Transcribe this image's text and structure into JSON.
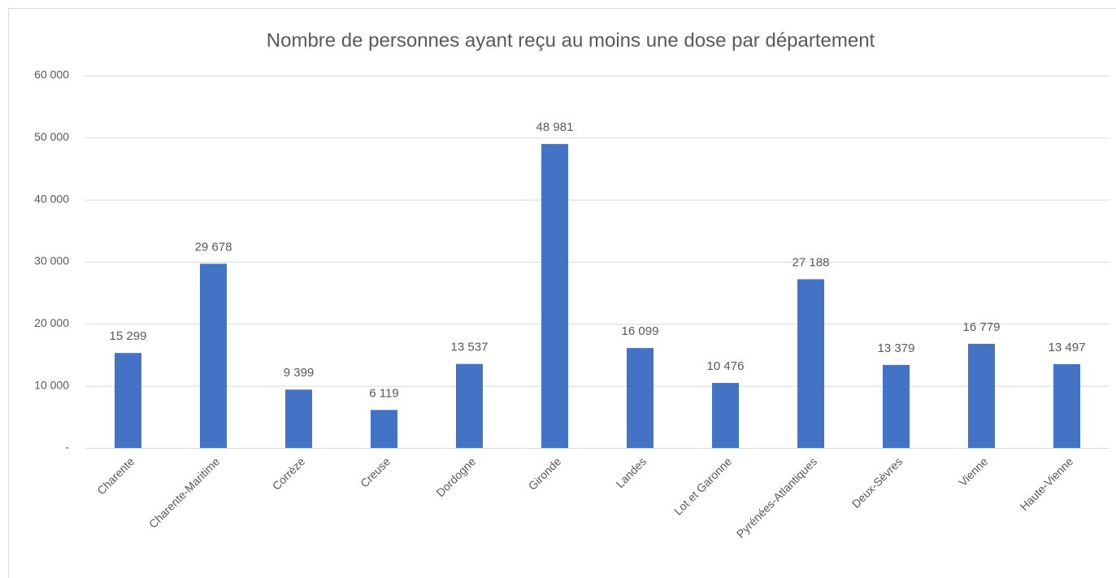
{
  "chart_data": {
    "type": "bar",
    "title": "Nombre de personnes ayant reçu au moins une dose par département",
    "categories": [
      "Charente",
      "Charente-Maritime",
      "Corrèze",
      "Creuse",
      "Dordogne",
      "Gironde",
      "Landes",
      "Lot et Garonne",
      "Pyrénées-Atlantiques",
      "Deux-Sèvres",
      "Vienne",
      "Haute-Vienne"
    ],
    "values": [
      15299,
      29678,
      9399,
      6119,
      13537,
      48981,
      16099,
      10476,
      27188,
      13379,
      16779,
      13497
    ],
    "value_labels": [
      "15 299",
      "29 678",
      "9 399",
      "6 119",
      "13 537",
      "48 981",
      "16 099",
      "10 476",
      "27 188",
      "13 379",
      "16 779",
      "13 497"
    ],
    "color": "#4472c4",
    "ylim": [
      0,
      60000
    ],
    "yticks": [
      {
        "value": 0,
        "label": "-"
      },
      {
        "value": 10000,
        "label": "10 000"
      },
      {
        "value": 20000,
        "label": "20 000"
      },
      {
        "value": 30000,
        "label": "30 000"
      },
      {
        "value": 40000,
        "label": "40 000"
      },
      {
        "value": 50000,
        "label": "50 000"
      },
      {
        "value": 60000,
        "label": "60 000"
      }
    ],
    "grid": true
  }
}
